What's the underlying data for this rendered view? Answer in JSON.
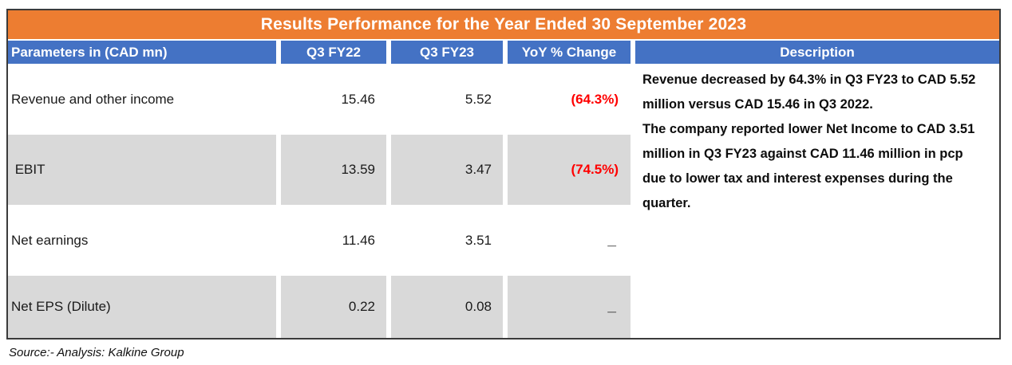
{
  "title": "Results Performance for the Year Ended 30 September 2023",
  "columns": [
    "Parameters in (CAD mn)",
    "Q3 FY22",
    "Q3 FY23",
    "YoY % Change",
    "Description"
  ],
  "rows": [
    {
      "parameter": "Revenue and other income",
      "q3_fy22": "15.46",
      "q3_fy23": "5.52",
      "yoy_change": "(64.3%)"
    },
    {
      "parameter": " EBIT",
      "q3_fy22": "13.59",
      "q3_fy23": "3.47",
      "yoy_change": "(74.5%)"
    },
    {
      "parameter": "Net earnings",
      "q3_fy22": "11.46",
      "q3_fy23": "3.51",
      "yoy_change": "_"
    },
    {
      "parameter": "Net EPS (Dilute)",
      "q3_fy22": "0.22",
      "q3_fy23": "0.08",
      "yoy_change": "_"
    }
  ],
  "description": {
    "paragraphs": [
      "Revenue decreased by 64.3% in Q3 FY23 to CAD 5.52 million versus CAD 15.46 in Q3 2022.",
      "The company reported lower Net Income to CAD 3.51  million in  Q3 FY23  against CAD 11.46 million in pcp due to lower tax and interest expenses  during the quarter."
    ]
  },
  "source": "Source:- Analysis: Kalkine Group",
  "colors": {
    "title_bar_orange": "#ED7D31",
    "header_blue": "#4472C4",
    "shaded_row_gray": "#D9D9D9",
    "negative_value_red": "#FF0000"
  }
}
